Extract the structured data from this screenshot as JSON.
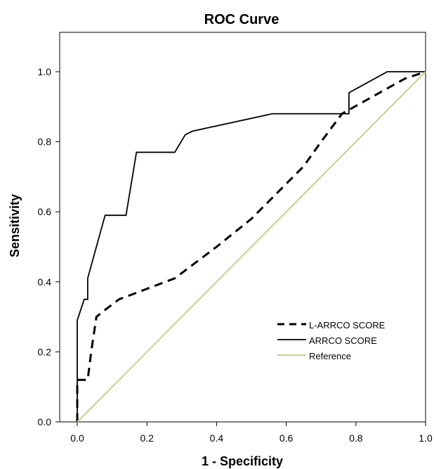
{
  "chart_data": {
    "type": "line",
    "title": "ROC Curve",
    "xlabel": "1 - Specificity",
    "ylabel": "Sensitivity",
    "xlim": [
      0,
      1
    ],
    "ylim": [
      0,
      1.1
    ],
    "x_ticks": [
      "0.0",
      "0.2",
      "0.4",
      "0.6",
      "0.8",
      "1.0"
    ],
    "y_ticks": [
      "0.0",
      "0.2",
      "0.4",
      "0.6",
      "0.8",
      "1.0"
    ],
    "x_tick_values": [
      0,
      0.2,
      0.4,
      0.6,
      0.8,
      1.0
    ],
    "y_tick_values": [
      0,
      0.2,
      0.4,
      0.6,
      0.8,
      1.0
    ],
    "legend_position": "lower-right",
    "grid": false,
    "series": [
      {
        "name": "L-ARRCO SCORE",
        "style": "dashed",
        "color": "#000000",
        "points": [
          [
            0.0,
            0.0
          ],
          [
            0.0,
            0.12
          ],
          [
            0.03,
            0.12
          ],
          [
            0.04,
            0.2
          ],
          [
            0.055,
            0.3
          ],
          [
            0.08,
            0.32
          ],
          [
            0.12,
            0.35
          ],
          [
            0.2,
            0.38
          ],
          [
            0.28,
            0.41
          ],
          [
            0.32,
            0.44
          ],
          [
            0.4,
            0.5
          ],
          [
            0.5,
            0.58
          ],
          [
            0.6,
            0.68
          ],
          [
            0.65,
            0.73
          ],
          [
            0.7,
            0.8
          ],
          [
            0.76,
            0.88
          ],
          [
            0.85,
            0.93
          ],
          [
            0.94,
            0.98
          ],
          [
            1.0,
            1.0
          ]
        ]
      },
      {
        "name": "ARRCO SCORE",
        "style": "solid",
        "color": "#000000",
        "points": [
          [
            0.0,
            0.0
          ],
          [
            0.0,
            0.29
          ],
          [
            0.02,
            0.35
          ],
          [
            0.03,
            0.35
          ],
          [
            0.03,
            0.41
          ],
          [
            0.08,
            0.59
          ],
          [
            0.14,
            0.59
          ],
          [
            0.17,
            0.77
          ],
          [
            0.28,
            0.77
          ],
          [
            0.31,
            0.82
          ],
          [
            0.33,
            0.83
          ],
          [
            0.56,
            0.88
          ],
          [
            0.78,
            0.88
          ],
          [
            0.78,
            0.94
          ],
          [
            0.89,
            1.0
          ],
          [
            1.0,
            1.0
          ]
        ]
      },
      {
        "name": "Reference",
        "style": "solid",
        "color": "#c8cf8f",
        "points": [
          [
            0.0,
            0.0
          ],
          [
            1.0,
            1.0
          ]
        ]
      }
    ]
  }
}
